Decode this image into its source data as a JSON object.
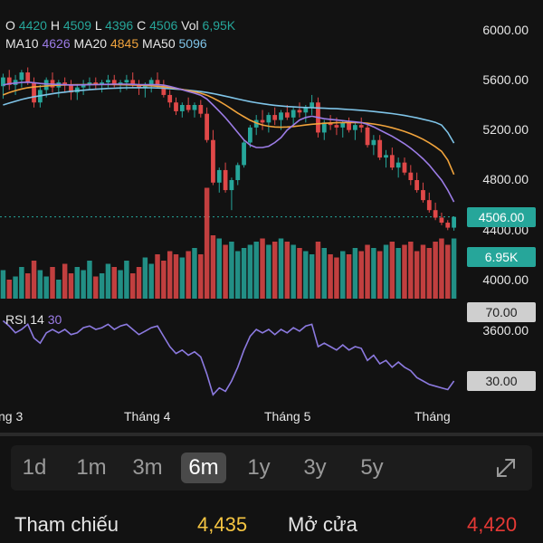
{
  "ohlc": {
    "o_label": "O",
    "o_value": "4420",
    "h_label": "H",
    "h_value": "4509",
    "l_label": "L",
    "l_value": "4396",
    "c_label": "C",
    "c_value": "4506",
    "vol_label": "Vol",
    "vol_value": "6,95K"
  },
  "ma": {
    "ma10_label": "MA10",
    "ma10_value": "4626",
    "ma20_label": "MA20",
    "ma20_value": "4845",
    "ma50_label": "MA50",
    "ma50_value": "5096"
  },
  "price_axis": [
    "6000.00",
    "5600.00",
    "5200.00",
    "4800.00",
    "4400.00",
    "4000.00",
    "3600.00"
  ],
  "price_badges": {
    "current": "4506.00",
    "volume": "6.95K",
    "rsi_upper": "70.00",
    "rsi_lower": "30.00"
  },
  "rsi": {
    "label": "RSI 14",
    "value": "30"
  },
  "months": [
    "ng 3",
    "Tháng 4",
    "Tháng 5",
    "Tháng"
  ],
  "ranges": [
    "1d",
    "1m",
    "3m",
    "6m",
    "1y",
    "3y",
    "5y"
  ],
  "active_range": "6m",
  "summary": {
    "ref_label": "Tham chiếu",
    "ref_value": "4,435",
    "open_label": "Mở cửa",
    "open_value": "4,420"
  },
  "colors": {
    "up": "#26a69a",
    "down": "#e04848",
    "ma10": "#9c7ce6",
    "ma20": "#f0a33c",
    "ma50": "#7fc4e8",
    "rsi": "#8c7ae0"
  },
  "chart_data": {
    "type": "candlestick",
    "y_range": [
      3600,
      6000
    ],
    "y_ticks": [
      6000,
      5600,
      5200,
      4800,
      4400,
      4000,
      3600
    ],
    "candles": [
      [
        5550,
        5650,
        5450,
        5620
      ],
      [
        5620,
        5680,
        5520,
        5560
      ],
      [
        5560,
        5640,
        5480,
        5600
      ],
      [
        5600,
        5680,
        5540,
        5660
      ],
      [
        5660,
        5700,
        5560,
        5580
      ],
      [
        5580,
        5620,
        5380,
        5420
      ],
      [
        5420,
        5560,
        5380,
        5520
      ],
      [
        5520,
        5620,
        5460,
        5600
      ],
      [
        5600,
        5660,
        5500,
        5540
      ],
      [
        5540,
        5600,
        5460,
        5580
      ],
      [
        5580,
        5620,
        5500,
        5560
      ],
      [
        5560,
        5600,
        5440,
        5500
      ],
      [
        5500,
        5560,
        5440,
        5540
      ],
      [
        5540,
        5600,
        5480,
        5560
      ],
      [
        5560,
        5620,
        5520,
        5580
      ],
      [
        5580,
        5620,
        5520,
        5560
      ],
      [
        5560,
        5600,
        5500,
        5580
      ],
      [
        5580,
        5640,
        5540,
        5600
      ],
      [
        5600,
        5640,
        5540,
        5560
      ],
      [
        5560,
        5600,
        5500,
        5580
      ],
      [
        5580,
        5640,
        5520,
        5600
      ],
      [
        5600,
        5660,
        5540,
        5560
      ],
      [
        5560,
        5600,
        5480,
        5540
      ],
      [
        5540,
        5580,
        5460,
        5560
      ],
      [
        5560,
        5620,
        5500,
        5600
      ],
      [
        5600,
        5660,
        5540,
        5560
      ],
      [
        5560,
        5600,
        5460,
        5480
      ],
      [
        5480,
        5520,
        5380,
        5420
      ],
      [
        5420,
        5460,
        5320,
        5350
      ],
      [
        5350,
        5420,
        5300,
        5400
      ],
      [
        5400,
        5460,
        5340,
        5360
      ],
      [
        5360,
        5420,
        5300,
        5400
      ],
      [
        5400,
        5440,
        5300,
        5330
      ],
      [
        5330,
        5380,
        5100,
        5120
      ],
      [
        5120,
        5200,
        4760,
        4780
      ],
      [
        4780,
        4900,
        4700,
        4880
      ],
      [
        4880,
        4940,
        4700,
        4720
      ],
      [
        4720,
        4820,
        4560,
        4800
      ],
      [
        4800,
        4940,
        4760,
        4920
      ],
      [
        4920,
        5120,
        4900,
        5100
      ],
      [
        5100,
        5240,
        5060,
        5220
      ],
      [
        5220,
        5320,
        5160,
        5280
      ],
      [
        5280,
        5360,
        5200,
        5260
      ],
      [
        5260,
        5340,
        5180,
        5320
      ],
      [
        5320,
        5380,
        5240,
        5280
      ],
      [
        5280,
        5360,
        5200,
        5340
      ],
      [
        5340,
        5400,
        5280,
        5300
      ],
      [
        5300,
        5380,
        5240,
        5360
      ],
      [
        5360,
        5420,
        5300,
        5340
      ],
      [
        5340,
        5400,
        5260,
        5380
      ],
      [
        5380,
        5480,
        5320,
        5420
      ],
      [
        5420,
        5460,
        5140,
        5180
      ],
      [
        5180,
        5280,
        5120,
        5260
      ],
      [
        5260,
        5320,
        5200,
        5240
      ],
      [
        5240,
        5300,
        5160,
        5220
      ],
      [
        5220,
        5280,
        5140,
        5260
      ],
      [
        5260,
        5300,
        5180,
        5200
      ],
      [
        5200,
        5260,
        5120,
        5240
      ],
      [
        5240,
        5300,
        5180,
        5220
      ],
      [
        5220,
        5260,
        5060,
        5080
      ],
      [
        5080,
        5160,
        5000,
        5120
      ],
      [
        5120,
        5160,
        4960,
        4980
      ],
      [
        4980,
        5040,
        4900,
        5000
      ],
      [
        5000,
        5060,
        4880,
        4900
      ],
      [
        4900,
        4980,
        4820,
        4940
      ],
      [
        4940,
        4980,
        4840,
        4860
      ],
      [
        4860,
        4920,
        4760,
        4800
      ],
      [
        4800,
        4860,
        4700,
        4720
      ],
      [
        4720,
        4780,
        4620,
        4640
      ],
      [
        4640,
        4700,
        4540,
        4560
      ],
      [
        4560,
        4620,
        4480,
        4500
      ],
      [
        4500,
        4540,
        4440,
        4460
      ],
      [
        4460,
        4480,
        4400,
        4420
      ],
      [
        4420,
        4509,
        4396,
        4506
      ]
    ],
    "ma10": [
      5560,
      5570,
      5575,
      5580,
      5582,
      5578,
      5572,
      5568,
      5566,
      5564,
      5562,
      5560,
      5560,
      5561,
      5562,
      5563,
      5564,
      5565,
      5566,
      5566,
      5566,
      5565,
      5563,
      5562,
      5562,
      5562,
      5558,
      5548,
      5535,
      5522,
      5508,
      5494,
      5478,
      5448,
      5400,
      5350,
      5298,
      5240,
      5180,
      5120,
      5080,
      5060,
      5060,
      5070,
      5100,
      5140,
      5200,
      5240,
      5280,
      5300,
      5310,
      5300,
      5290,
      5285,
      5280,
      5275,
      5270,
      5265,
      5260,
      5245,
      5225,
      5200,
      5175,
      5150,
      5120,
      5090,
      5055,
      5015,
      4970,
      4920,
      4860,
      4800,
      4720,
      4626
    ],
    "ma20": [
      5480,
      5500,
      5515,
      5528,
      5538,
      5544,
      5548,
      5552,
      5556,
      5558,
      5560,
      5561,
      5562,
      5563,
      5564,
      5564,
      5564,
      5564,
      5563,
      5562,
      5561,
      5560,
      5558,
      5556,
      5553,
      5550,
      5546,
      5540,
      5532,
      5524,
      5515,
      5505,
      5494,
      5478,
      5456,
      5430,
      5400,
      5368,
      5336,
      5306,
      5278,
      5256,
      5240,
      5230,
      5224,
      5222,
      5224,
      5228,
      5234,
      5240,
      5246,
      5250,
      5254,
      5256,
      5258,
      5259,
      5260,
      5260,
      5258,
      5254,
      5248,
      5240,
      5230,
      5218,
      5204,
      5188,
      5170,
      5150,
      5126,
      5098,
      5066,
      5030,
      4960,
      4845
    ],
    "ma50": [
      5400,
      5415,
      5430,
      5444,
      5456,
      5466,
      5474,
      5482,
      5490,
      5497,
      5503,
      5509,
      5514,
      5518,
      5522,
      5526,
      5529,
      5532,
      5534,
      5536,
      5537,
      5538,
      5538,
      5538,
      5537,
      5536,
      5534,
      5531,
      5527,
      5523,
      5518,
      5513,
      5507,
      5500,
      5491,
      5481,
      5470,
      5459,
      5448,
      5437,
      5427,
      5418,
      5410,
      5403,
      5397,
      5392,
      5388,
      5385,
      5382,
      5380,
      5378,
      5376,
      5374,
      5372,
      5370,
      5367,
      5364,
      5361,
      5357,
      5353,
      5348,
      5343,
      5337,
      5331,
      5324,
      5316,
      5307,
      5297,
      5286,
      5274,
      5261,
      5240,
      5180,
      5096
    ],
    "volume_ratio": [
      0.45,
      0.3,
      0.35,
      0.5,
      0.4,
      0.6,
      0.45,
      0.35,
      0.5,
      0.3,
      0.55,
      0.4,
      0.5,
      0.45,
      0.6,
      0.35,
      0.4,
      0.55,
      0.5,
      0.45,
      0.6,
      0.4,
      0.5,
      0.65,
      0.55,
      0.7,
      0.6,
      0.75,
      0.7,
      0.65,
      0.75,
      0.8,
      0.7,
      1.75,
      1.0,
      0.95,
      0.85,
      0.9,
      0.75,
      0.8,
      0.85,
      0.9,
      0.95,
      0.85,
      0.9,
      0.95,
      0.9,
      0.85,
      0.8,
      0.75,
      0.7,
      0.9,
      0.8,
      0.7,
      0.65,
      0.75,
      0.7,
      0.8,
      0.75,
      0.85,
      0.8,
      0.75,
      0.85,
      0.9,
      0.8,
      0.85,
      0.9,
      0.75,
      0.85,
      0.8,
      0.9,
      0.95,
      0.85,
      0.95
    ],
    "rsi": [
      65,
      62,
      58,
      60,
      63,
      55,
      52,
      58,
      60,
      58,
      60,
      57,
      58,
      61,
      62,
      60,
      61,
      63,
      60,
      62,
      63,
      60,
      57,
      59,
      61,
      62,
      56,
      50,
      46,
      48,
      45,
      47,
      44,
      34,
      22,
      26,
      24,
      30,
      38,
      48,
      56,
      60,
      58,
      60,
      57,
      60,
      58,
      61,
      59,
      62,
      63,
      50,
      52,
      50,
      48,
      51,
      48,
      50,
      49,
      42,
      45,
      40,
      42,
      38,
      41,
      38,
      36,
      32,
      30,
      28,
      27,
      26,
      25,
      30
    ],
    "rsi_bands": [
      70,
      30
    ],
    "x_labels": [
      "ng 3",
      "Tháng 4",
      "Tháng 5",
      "Tháng"
    ]
  }
}
